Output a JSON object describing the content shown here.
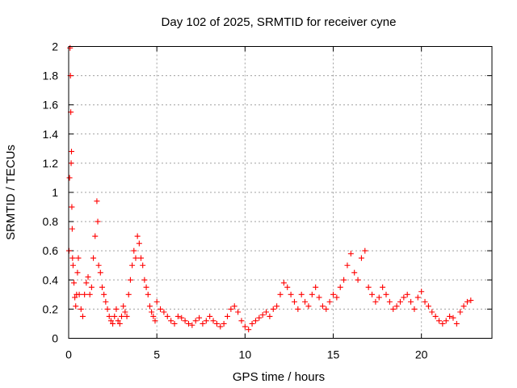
{
  "chart_data": {
    "type": "scatter",
    "title": "Day 102 of 2025, SRMTID for receiver cyne",
    "xlabel": "GPS time / hours",
    "ylabel": "SRMTID / TECUs",
    "xlim": [
      0,
      24
    ],
    "ylim": [
      0,
      2
    ],
    "xticks": [
      0,
      5,
      10,
      15,
      20
    ],
    "xtick_labels": [
      "0",
      "5",
      "10",
      "15",
      "20"
    ],
    "yticks": [
      0,
      0.2,
      0.4,
      0.6,
      0.8,
      1,
      1.2,
      1.4,
      1.6,
      1.8,
      2
    ],
    "ytick_labels": [
      "0",
      "0.2",
      "0.4",
      "0.6",
      "0.8",
      "1",
      "1.2",
      "1.4",
      "1.6",
      "1.8",
      "2"
    ],
    "grid": true,
    "marker": "plus",
    "color": "#ff0000",
    "series": [
      {
        "name": "SRMTID",
        "x": [
          0.02,
          0.05,
          0.08,
          0.1,
          0.12,
          0.14,
          0.16,
          0.18,
          0.2,
          0.22,
          0.25,
          0.3,
          0.35,
          0.4,
          0.45,
          0.5,
          0.55,
          0.6,
          0.7,
          0.8,
          0.9,
          1.0,
          1.1,
          1.2,
          1.3,
          1.4,
          1.5,
          1.6,
          1.65,
          1.7,
          1.8,
          1.9,
          2.0,
          2.1,
          2.2,
          2.3,
          2.4,
          2.5,
          2.6,
          2.7,
          2.8,
          2.9,
          3.0,
          3.1,
          3.2,
          3.3,
          3.4,
          3.5,
          3.6,
          3.7,
          3.8,
          3.9,
          4.0,
          4.1,
          4.2,
          4.3,
          4.4,
          4.5,
          4.6,
          4.7,
          4.8,
          4.9,
          5.0,
          5.2,
          5.4,
          5.6,
          5.8,
          6.0,
          6.2,
          6.4,
          6.6,
          6.8,
          7.0,
          7.2,
          7.4,
          7.6,
          7.8,
          8.0,
          8.2,
          8.4,
          8.6,
          8.8,
          9.0,
          9.2,
          9.4,
          9.6,
          9.8,
          10.0,
          10.2,
          10.4,
          10.6,
          10.8,
          11.0,
          11.2,
          11.4,
          11.6,
          11.8,
          12.0,
          12.2,
          12.4,
          12.6,
          12.8,
          13.0,
          13.2,
          13.4,
          13.6,
          13.8,
          14.0,
          14.2,
          14.4,
          14.6,
          14.8,
          15.0,
          15.2,
          15.4,
          15.6,
          15.8,
          16.0,
          16.2,
          16.4,
          16.6,
          16.8,
          17.0,
          17.2,
          17.4,
          17.6,
          17.8,
          18.0,
          18.2,
          18.4,
          18.6,
          18.8,
          19.0,
          19.2,
          19.4,
          19.6,
          19.8,
          20.0,
          20.2,
          20.4,
          20.6,
          20.8,
          21.0,
          21.2,
          21.4,
          21.6,
          21.8,
          22.0,
          22.2,
          22.4,
          22.6,
          22.8
        ],
        "y": [
          0.6,
          1.1,
          1.99,
          1.8,
          1.55,
          1.2,
          1.28,
          0.9,
          0.75,
          0.55,
          0.5,
          0.38,
          0.28,
          0.22,
          0.3,
          0.45,
          0.55,
          0.3,
          0.2,
          0.15,
          0.3,
          0.38,
          0.42,
          0.3,
          0.35,
          0.55,
          0.7,
          0.94,
          0.8,
          0.5,
          0.45,
          0.35,
          0.3,
          0.25,
          0.2,
          0.15,
          0.12,
          0.1,
          0.15,
          0.2,
          0.12,
          0.1,
          0.15,
          0.22,
          0.18,
          0.15,
          0.3,
          0.4,
          0.5,
          0.6,
          0.55,
          0.7,
          0.65,
          0.55,
          0.5,
          0.4,
          0.35,
          0.3,
          0.22,
          0.18,
          0.15,
          0.12,
          0.25,
          0.2,
          0.18,
          0.15,
          0.12,
          0.1,
          0.15,
          0.14,
          0.12,
          0.1,
          0.09,
          0.12,
          0.14,
          0.1,
          0.12,
          0.15,
          0.12,
          0.1,
          0.08,
          0.1,
          0.15,
          0.2,
          0.22,
          0.18,
          0.12,
          0.08,
          0.06,
          0.1,
          0.12,
          0.14,
          0.16,
          0.18,
          0.15,
          0.2,
          0.22,
          0.3,
          0.38,
          0.35,
          0.3,
          0.25,
          0.2,
          0.3,
          0.25,
          0.22,
          0.3,
          0.35,
          0.28,
          0.22,
          0.2,
          0.25,
          0.3,
          0.28,
          0.35,
          0.4,
          0.5,
          0.58,
          0.45,
          0.4,
          0.55,
          0.6,
          0.35,
          0.3,
          0.25,
          0.28,
          0.35,
          0.3,
          0.25,
          0.2,
          0.22,
          0.25,
          0.28,
          0.3,
          0.25,
          0.2,
          0.28,
          0.32,
          0.25,
          0.22,
          0.18,
          0.15,
          0.12,
          0.1,
          0.12,
          0.15,
          0.14,
          0.1,
          0.18,
          0.22,
          0.25,
          0.26
        ]
      }
    ]
  }
}
